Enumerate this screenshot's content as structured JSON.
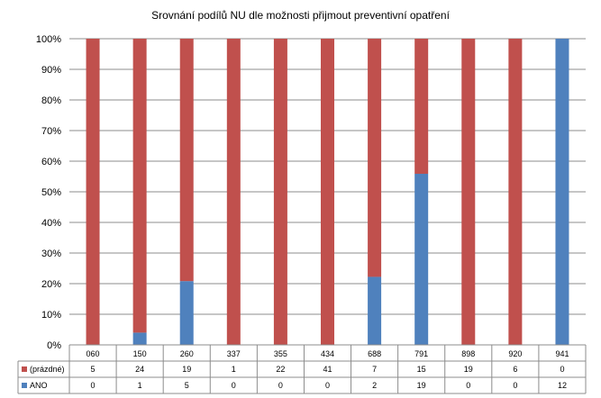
{
  "chart_data": {
    "type": "bar",
    "stacked": "percent",
    "title": "Srovnání podílů NU  dle možnosti přijmout preventivní opatření",
    "categories": [
      "060",
      "150",
      "260",
      "337",
      "355",
      "434",
      "688",
      "791",
      "898",
      "920",
      "941"
    ],
    "series": [
      {
        "name": "ANO",
        "values": [
          0,
          1,
          5,
          0,
          0,
          0,
          2,
          19,
          0,
          0,
          12
        ],
        "color": "#4f81bd"
      },
      {
        "name": "(prázdné)",
        "values": [
          5,
          24,
          19,
          1,
          22,
          41,
          7,
          15,
          19,
          6,
          0
        ],
        "color": "#c0504d"
      }
    ],
    "y_ticks": [
      "0%",
      "10%",
      "20%",
      "30%",
      "40%",
      "50%",
      "60%",
      "70%",
      "80%",
      "90%",
      "100%"
    ],
    "ylim": [
      0,
      100
    ],
    "grid": true,
    "legend": "data-table"
  }
}
